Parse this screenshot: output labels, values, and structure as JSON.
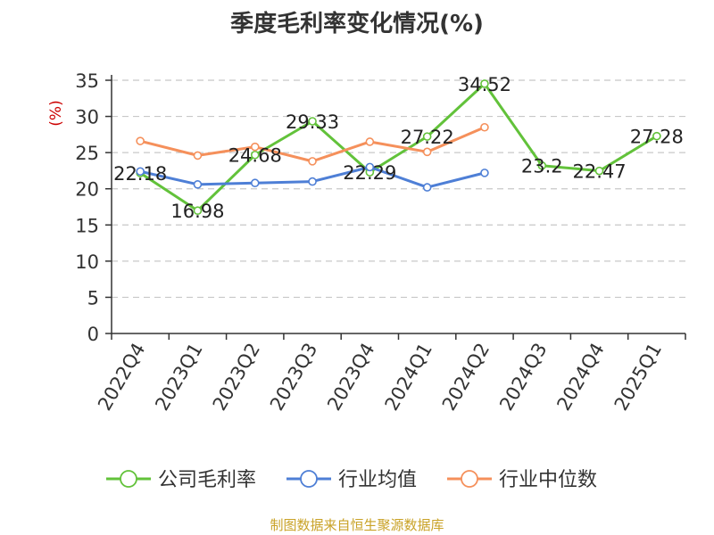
{
  "chart_data": {
    "type": "line",
    "title": "季度毛利率变化情况(%)",
    "ylabel": "(%)",
    "xlabel": "",
    "ylim": [
      0,
      35
    ],
    "yticks": [
      0,
      5,
      10,
      15,
      20,
      25,
      30,
      35
    ],
    "grid": true,
    "legend_placement": "bottom",
    "categories": [
      "2022Q4",
      "2023Q1",
      "2023Q2",
      "2023Q3",
      "2023Q4",
      "2024Q1",
      "2024Q2",
      "2024Q3",
      "2024Q4",
      "2025Q1"
    ],
    "series": [
      {
        "name": "公司毛利率",
        "color": "#62c23a",
        "values": [
          22.18,
          16.98,
          24.68,
          29.33,
          22.29,
          27.22,
          34.52,
          23.2,
          22.47,
          27.28
        ],
        "data_labels": [
          "22.18",
          "16.98",
          "24.68",
          "29.33",
          "22.29",
          "27.22",
          "34.52",
          "23.2",
          "22.47",
          "27.28"
        ]
      },
      {
        "name": "行业均值",
        "color": "#4e7fd6",
        "values": [
          22.4,
          20.6,
          20.8,
          21.0,
          23.0,
          20.2,
          22.2,
          null,
          null,
          null
        ]
      },
      {
        "name": "行业中位数",
        "color": "#f5905b",
        "values": [
          26.6,
          24.6,
          25.8,
          23.8,
          26.5,
          25.1,
          28.5,
          null,
          null,
          null
        ]
      }
    ]
  },
  "source": "制图数据来自恒生聚源数据库"
}
